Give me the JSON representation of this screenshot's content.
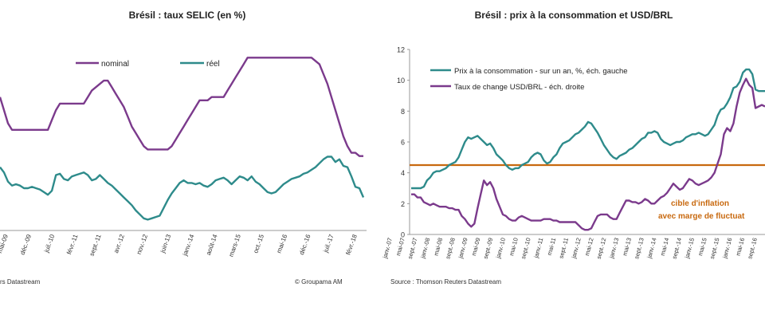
{
  "chart_data": [
    {
      "type": "line",
      "title": "Brésil : taux SELIC (en %)",
      "x_tick_labels": [
        "mai-09",
        "déc.-09",
        "juil.-10",
        "févr.-11",
        "sept.-11",
        "avr.-12",
        "nov.-12",
        "juin-13",
        "janv.-14",
        "août-14",
        "mars-15",
        "oct.-15",
        "mai-16",
        "déc.-16",
        "juil.-17",
        "févr.-18"
      ],
      "x_start": "2009-03",
      "series": [
        {
          "name": "nominal",
          "color": "#7b3a8c",
          "values": [
            11.25,
            10.25,
            9.25,
            8.75,
            8.75,
            8.75,
            8.75,
            8.75,
            8.75,
            8.75,
            8.75,
            8.75,
            8.75,
            9.5,
            10.25,
            10.75,
            10.75,
            10.75,
            10.75,
            10.75,
            10.75,
            10.75,
            11.25,
            11.75,
            12.0,
            12.25,
            12.5,
            12.5,
            12.0,
            11.5,
            11.0,
            10.5,
            9.75,
            9.0,
            8.5,
            8.0,
            7.5,
            7.25,
            7.25,
            7.25,
            7.25,
            7.25,
            7.25,
            7.5,
            8.0,
            8.5,
            9.0,
            9.5,
            10.0,
            10.5,
            11.0,
            11.0,
            11.0,
            11.25,
            11.25,
            11.25,
            11.25,
            11.75,
            12.25,
            12.75,
            13.25,
            13.75,
            14.25,
            14.25,
            14.25,
            14.25,
            14.25,
            14.25,
            14.25,
            14.25,
            14.25,
            14.25,
            14.25,
            14.25,
            14.25,
            14.25,
            14.25,
            14.25,
            14.25,
            14.0,
            13.75,
            13.0,
            12.25,
            11.25,
            10.25,
            9.25,
            8.25,
            7.5,
            7.0,
            7.0,
            6.75,
            6.75
          ]
        },
        {
          "name": "réel",
          "color": "#2e8b8b",
          "values": [
            5.9,
            5.5,
            4.8,
            4.5,
            4.6,
            4.5,
            4.3,
            4.3,
            4.4,
            4.3,
            4.2,
            4.0,
            3.8,
            4.1,
            5.3,
            5.4,
            5.0,
            4.9,
            5.2,
            5.3,
            5.4,
            5.5,
            5.3,
            4.9,
            5.0,
            5.3,
            5.0,
            4.7,
            4.5,
            4.2,
            3.9,
            3.6,
            3.3,
            3.0,
            2.6,
            2.3,
            2.0,
            1.9,
            2.0,
            2.1,
            2.2,
            2.8,
            3.4,
            3.9,
            4.3,
            4.7,
            4.9,
            4.7,
            4.7,
            4.6,
            4.7,
            4.5,
            4.4,
            4.6,
            4.9,
            5.0,
            5.1,
            4.9,
            4.6,
            4.9,
            5.2,
            5.1,
            4.9,
            5.2,
            4.8,
            4.6,
            4.3,
            4.0,
            3.9,
            4.0,
            4.3,
            4.6,
            4.8,
            5.0,
            5.1,
            5.2,
            5.4,
            5.5,
            5.7,
            5.9,
            6.2,
            6.5,
            6.7,
            6.7,
            6.3,
            6.5,
            6.0,
            5.9,
            5.2,
            4.4,
            4.3,
            3.6
          ]
        }
      ],
      "ylim": [
        1.5,
        15
      ]
    },
    {
      "type": "line",
      "title": "Brésil : prix à la consommation et USD/BRL",
      "y_ticks": [
        0,
        2,
        4,
        6,
        8,
        10,
        12
      ],
      "ylim": [
        0,
        12
      ],
      "x_tick_labels": [
        "janv.-07",
        "mai-07",
        "sept.-07",
        "janv.-08",
        "mai-08",
        "sept.-08",
        "janv.-09",
        "mai-09",
        "sept.-09",
        "janv.-10",
        "mai-10",
        "sept.-10",
        "janv.-11",
        "mai-11",
        "sept.-11",
        "janv.-12",
        "mai-12",
        "sept.-12",
        "janv.-13",
        "mai-13",
        "sept.-13",
        "janv.-14",
        "mai-14",
        "sept.-14",
        "janv.-15",
        "mai-15",
        "sept.-15",
        "janv.-16",
        "mai-16",
        "sept.-16"
      ],
      "x_start": "2007-01",
      "series": [
        {
          "name": "Prix à la consommation - sur un an, %, éch. gauche",
          "color": "#2e8b8b",
          "values": [
            3.0,
            3.0,
            3.0,
            3.0,
            3.1,
            3.5,
            3.7,
            4.0,
            4.1,
            4.1,
            4.2,
            4.3,
            4.5,
            4.6,
            4.7,
            5.0,
            5.5,
            6.0,
            6.3,
            6.2,
            6.3,
            6.4,
            6.2,
            6.0,
            5.8,
            5.9,
            5.6,
            5.2,
            5.0,
            4.8,
            4.5,
            4.3,
            4.2,
            4.3,
            4.3,
            4.5,
            4.6,
            4.7,
            5.0,
            5.2,
            5.3,
            5.2,
            4.8,
            4.6,
            4.7,
            5.0,
            5.2,
            5.6,
            5.9,
            6.0,
            6.1,
            6.3,
            6.5,
            6.6,
            6.8,
            7.0,
            7.3,
            7.2,
            6.9,
            6.6,
            6.2,
            5.8,
            5.5,
            5.2,
            5.0,
            4.9,
            5.1,
            5.2,
            5.3,
            5.5,
            5.6,
            5.8,
            6.0,
            6.2,
            6.3,
            6.6,
            6.6,
            6.7,
            6.6,
            6.2,
            6.0,
            5.9,
            5.8,
            5.9,
            6.0,
            6.0,
            6.1,
            6.3,
            6.4,
            6.5,
            6.5,
            6.6,
            6.5,
            6.4,
            6.5,
            6.8,
            7.1,
            7.7,
            8.1,
            8.2,
            8.5,
            8.9,
            9.5,
            9.6,
            9.9,
            10.5,
            10.7,
            10.7,
            10.4,
            9.4,
            9.3,
            9.3,
            9.3
          ]
        },
        {
          "name": "Taux de change USD/BRL - éch. droite",
          "color": "#7b3a8c",
          "values": [
            2.6,
            2.6,
            2.4,
            2.4,
            2.1,
            2.0,
            1.9,
            2.0,
            1.9,
            1.8,
            1.8,
            1.8,
            1.7,
            1.7,
            1.6,
            1.6,
            1.2,
            1.0,
            0.7,
            0.5,
            0.7,
            1.7,
            2.6,
            3.5,
            3.2,
            3.4,
            3.0,
            2.3,
            1.8,
            1.3,
            1.2,
            1.0,
            0.9,
            0.9,
            1.1,
            1.2,
            1.1,
            1.0,
            0.9,
            0.9,
            0.9,
            0.9,
            1.0,
            1.0,
            1.0,
            0.9,
            0.9,
            0.8,
            0.8,
            0.8,
            0.8,
            0.8,
            0.8,
            0.6,
            0.4,
            0.3,
            0.3,
            0.4,
            0.8,
            1.2,
            1.3,
            1.3,
            1.3,
            1.1,
            1.0,
            1.0,
            1.4,
            1.8,
            2.2,
            2.2,
            2.1,
            2.1,
            2.0,
            2.1,
            2.3,
            2.2,
            2.0,
            2.0,
            2.2,
            2.4,
            2.5,
            2.7,
            3.0,
            3.3,
            3.1,
            2.9,
            3.0,
            3.3,
            3.6,
            3.5,
            3.3,
            3.2,
            3.3,
            3.4,
            3.5,
            3.7,
            4.0,
            4.6,
            5.2,
            6.5,
            6.9,
            6.7,
            7.2,
            8.3,
            9.2,
            9.7,
            10.1,
            9.7,
            9.5,
            8.2,
            8.3,
            8.4,
            8.3
          ]
        }
      ],
      "reference_line": {
        "label": "cible d'inflation",
        "value": 4.5,
        "color": "#c8690f"
      },
      "annotation": {
        "line1": "cible d'inflation",
        "line2": "avec marge de fluctuat"
      }
    }
  ],
  "left": {
    "source": "rs Datastream",
    "credit": "© Groupama AM",
    "legend_nominal": "nominal",
    "legend_reel": "réel"
  },
  "right": {
    "source": "Source : Thomson Reuters Datastream"
  }
}
